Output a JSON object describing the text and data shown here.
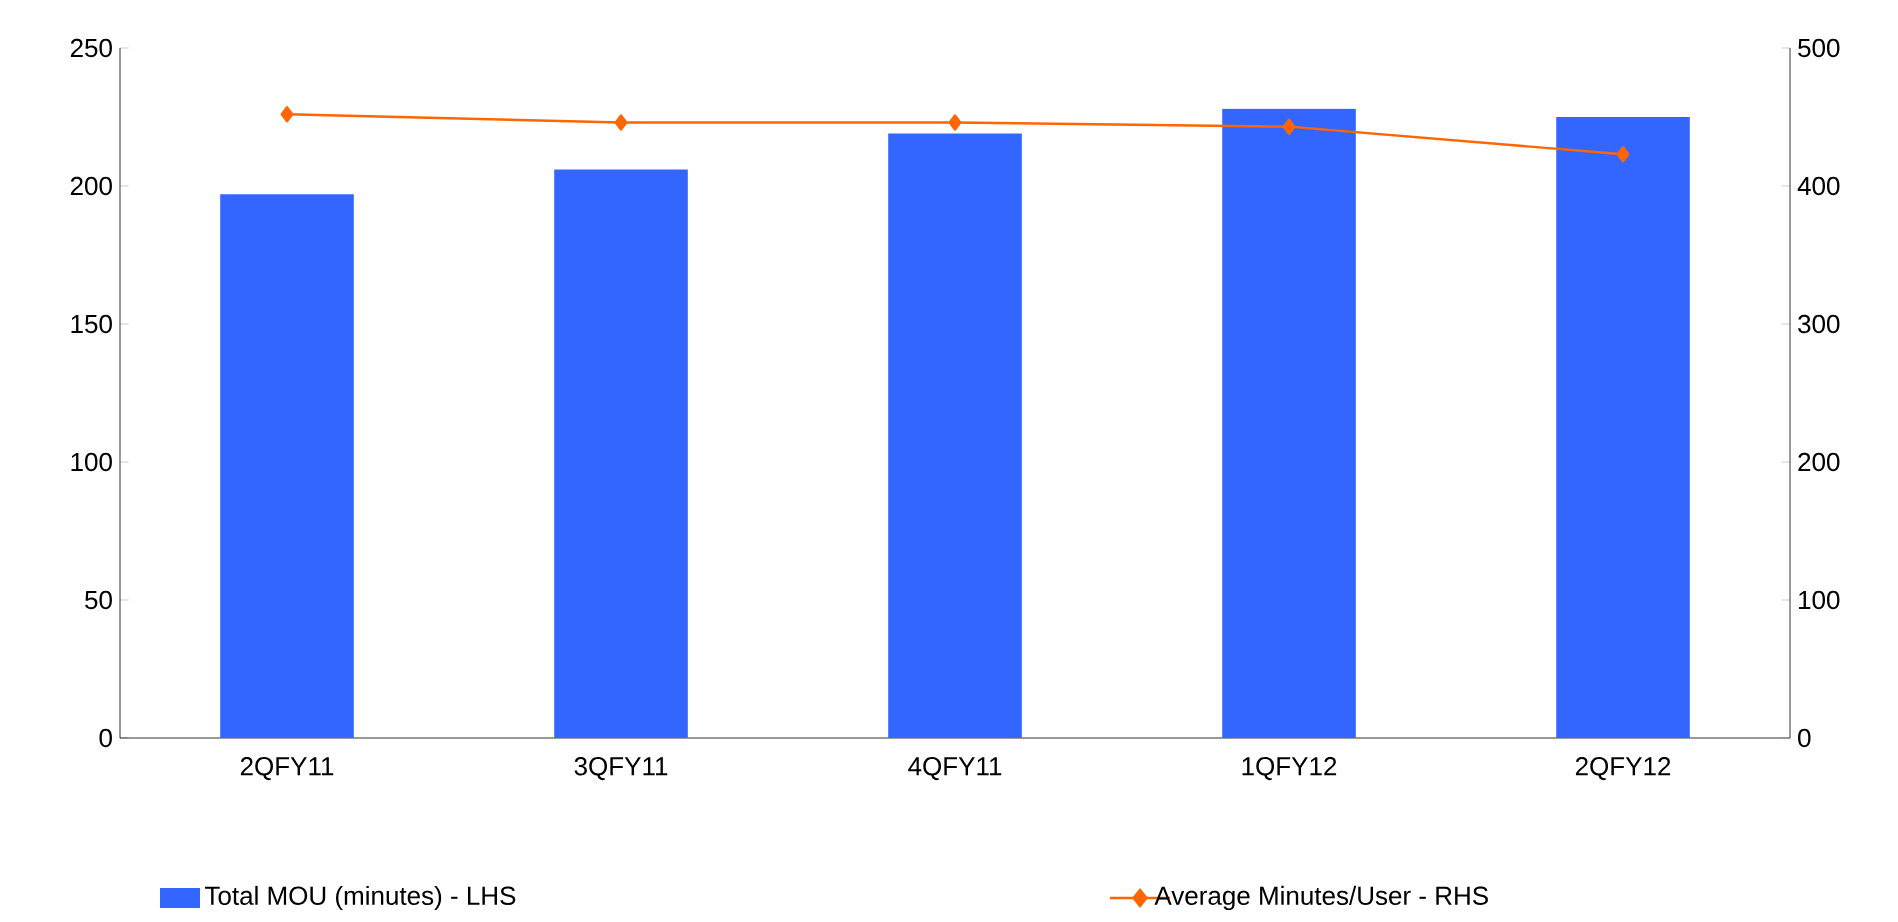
{
  "chart_data": {
    "type": "bar",
    "categories": [
      "2QFY11",
      "3QFY11",
      "4QFY11",
      "1QFY12",
      "2QFY12"
    ],
    "series": [
      {
        "name": "Total MOU (minutes) - LHS",
        "color": "#3366ff",
        "values": [
          197,
          206,
          219,
          228,
          225
        ]
      },
      {
        "name": "Average Minutes/User - RHS",
        "type": "line",
        "axis": "y2",
        "color": "#ff6600",
        "marker": "diamond",
        "values": [
          452,
          446,
          446,
          443,
          423
        ]
      }
    ],
    "ylim": [
      0,
      250
    ],
    "yticks": [
      0,
      50,
      100,
      150,
      200,
      250
    ],
    "y2lim": [
      0,
      500
    ],
    "y2ticks": [
      0,
      100,
      200,
      300,
      400,
      500
    ],
    "legend": "bottom",
    "grid": false
  }
}
